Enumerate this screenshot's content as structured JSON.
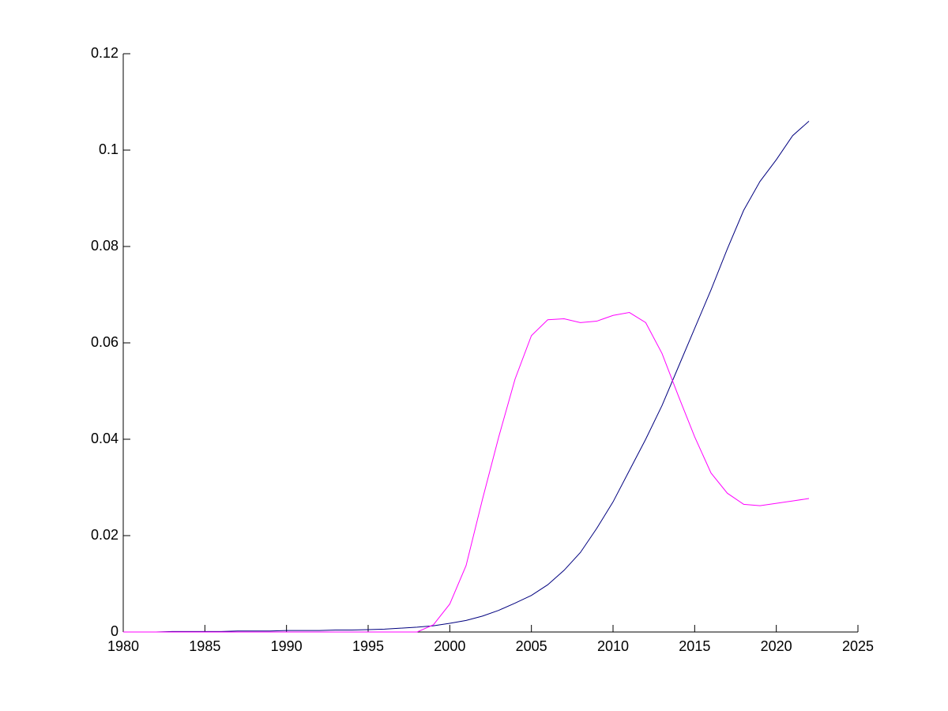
{
  "chart_data": {
    "type": "line",
    "x": [
      1980,
      1981,
      1982,
      1983,
      1984,
      1985,
      1986,
      1987,
      1988,
      1989,
      1990,
      1991,
      1992,
      1993,
      1994,
      1995,
      1996,
      1997,
      1998,
      1999,
      2000,
      2001,
      2002,
      2003,
      2004,
      2005,
      2006,
      2007,
      2008,
      2009,
      2010,
      2011,
      2012,
      2013,
      2014,
      2015,
      2016,
      2017,
      2018,
      2019,
      2020,
      2021,
      2022
    ],
    "series": [
      {
        "color": "#00007f",
        "values": [
          0,
          0,
          0,
          0.0001,
          0.0001,
          0.0001,
          0.0001,
          0.0002,
          0.0002,
          0.0002,
          0.0003,
          0.0003,
          0.0003,
          0.0004,
          0.0004,
          0.0005,
          0.0006,
          0.0008,
          0.001,
          0.0013,
          0.0018,
          0.0024,
          0.0033,
          0.0045,
          0.006,
          0.0076,
          0.0098,
          0.0128,
          0.0165,
          0.0215,
          0.027,
          0.0335,
          0.04,
          0.047,
          0.055,
          0.063,
          0.071,
          0.0795,
          0.0875,
          0.0935,
          0.098,
          0.103,
          0.106
        ]
      },
      {
        "color": "#ff00ff",
        "values": [
          0,
          0,
          0,
          0,
          0,
          0,
          0,
          0,
          0,
          0,
          0,
          0,
          0,
          0,
          0,
          0,
          0,
          0,
          0,
          0.0015,
          0.0058,
          0.0138,
          0.0275,
          0.0405,
          0.0525,
          0.0615,
          0.0648,
          0.065,
          0.0642,
          0.0645,
          0.0657,
          0.0663,
          0.0642,
          0.0578,
          0.049,
          0.0405,
          0.033,
          0.0288,
          0.0265,
          0.0262,
          0.0267,
          0.0272,
          0.0277
        ]
      }
    ],
    "xlim": [
      1980,
      2025
    ],
    "xticks": [
      1980,
      1985,
      1990,
      1995,
      2000,
      2005,
      2010,
      2015,
      2020,
      2025
    ],
    "ylim": [
      0,
      0.12
    ],
    "yticks": [
      0,
      0.02,
      0.04,
      0.06,
      0.08,
      0.1,
      0.12
    ]
  }
}
